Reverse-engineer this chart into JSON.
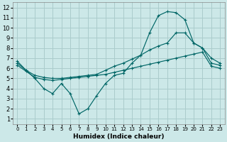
{
  "xlabel": "Humidex (Indice chaleur)",
  "background_color": "#cce8e8",
  "grid_color": "#aacccc",
  "line_color": "#006666",
  "xlim": [
    -0.5,
    23.5
  ],
  "ylim": [
    0.5,
    12.5
  ],
  "xticks": [
    0,
    1,
    2,
    3,
    4,
    5,
    6,
    7,
    8,
    9,
    10,
    11,
    12,
    13,
    14,
    15,
    16,
    17,
    18,
    19,
    20,
    21,
    22,
    23
  ],
  "yticks": [
    1,
    2,
    3,
    4,
    5,
    6,
    7,
    8,
    9,
    10,
    11,
    12
  ],
  "series": [
    {
      "x": [
        0,
        1,
        2,
        3,
        4,
        5,
        6,
        7,
        8,
        9,
        10,
        11,
        12,
        13,
        14,
        15,
        16,
        17,
        18,
        19,
        20,
        21,
        22,
        23
      ],
      "y": [
        6.7,
        5.8,
        5.0,
        4.0,
        3.5,
        4.5,
        3.5,
        1.5,
        2.0,
        3.3,
        4.5,
        5.3,
        5.5,
        6.5,
        7.3,
        9.5,
        11.2,
        11.6,
        11.5,
        10.8,
        8.5,
        8.0,
        6.5,
        6.3
      ]
    },
    {
      "x": [
        0,
        1,
        2,
        3,
        4,
        5,
        6,
        7,
        8,
        9,
        10,
        11,
        12,
        13,
        14,
        15,
        16,
        17,
        18,
        19,
        20,
        21,
        22,
        23
      ],
      "y": [
        6.5,
        5.8,
        5.3,
        5.1,
        5.0,
        5.0,
        5.1,
        5.2,
        5.3,
        5.4,
        5.8,
        6.2,
        6.5,
        6.9,
        7.3,
        7.8,
        8.2,
        8.5,
        9.5,
        9.5,
        8.5,
        8.0,
        7.0,
        6.5
      ]
    },
    {
      "x": [
        0,
        1,
        2,
        3,
        4,
        5,
        6,
        7,
        8,
        9,
        10,
        11,
        12,
        13,
        14,
        15,
        16,
        17,
        18,
        19,
        20,
        21,
        22,
        23
      ],
      "y": [
        6.3,
        5.7,
        5.1,
        4.9,
        4.8,
        4.9,
        5.0,
        5.1,
        5.2,
        5.3,
        5.4,
        5.6,
        5.8,
        6.0,
        6.2,
        6.4,
        6.6,
        6.8,
        7.0,
        7.2,
        7.4,
        7.6,
        6.2,
        6.0
      ]
    }
  ]
}
